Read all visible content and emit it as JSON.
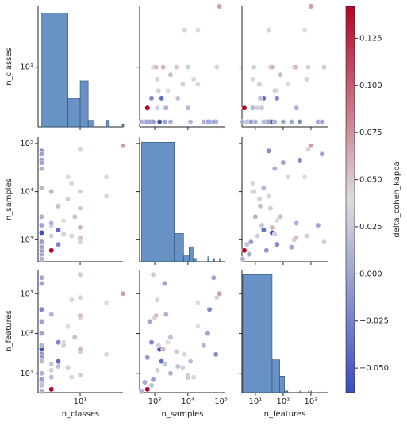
{
  "chart_data": {
    "type": "pairplot",
    "variables": [
      {
        "name": "n_classes",
        "lim": [
          1.72,
          60
        ],
        "ticks": [
          {
            "value": 10,
            "label": "10¹"
          }
        ],
        "values": [
          3,
          2,
          4,
          2,
          2,
          60,
          10,
          10,
          2,
          2,
          2,
          2,
          3,
          5,
          6,
          10,
          10,
          30,
          30,
          7,
          4,
          2,
          2,
          3,
          2,
          2,
          7,
          10,
          8,
          2,
          2,
          3,
          5,
          2,
          10,
          4,
          10,
          2,
          3,
          6
        ],
        "hist": {
          "bins": [
            2,
            6,
            10,
            14,
            18,
            22,
            26,
            30,
            34,
            38,
            42,
            46,
            50,
            54,
            58,
            62
          ],
          "counts": [
            52,
            13,
            21,
            3,
            0,
            0,
            0,
            3,
            0,
            0,
            0,
            0,
            0,
            0,
            1
          ],
          "ylim": [
            0,
            55
          ]
        }
      },
      {
        "name": "n_samples",
        "lim": [
          350,
          135000
        ],
        "ticks": [
          {
            "value": 1000,
            "label": "10³"
          },
          {
            "value": 10000,
            "label": "10⁴"
          },
          {
            "value": 100000,
            "label": "10⁵"
          }
        ],
        "values": [
          600,
          1400,
          1600,
          45000,
          70000,
          90000,
          900,
          75000,
          2000,
          3000,
          500,
          800,
          1200,
          2500,
          20000,
          1000,
          1100,
          20000,
          8000,
          15000,
          5000,
          40000,
          30000,
          10000,
          600,
          900,
          1200,
          4500,
          3000,
          700,
          400,
          2000,
          1300,
          12000,
          1800,
          800,
          10000,
          60000,
          2200,
          7000
        ],
        "hist": {
          "bins": [
            400,
            3900,
            7400,
            10900,
            14400,
            17900,
            40000,
            43500,
            60000,
            63500,
            90000,
            93500
          ],
          "counts": [
            72,
            17,
            4,
            9,
            2,
            0,
            3,
            0,
            2,
            0,
            2
          ],
          "ylim": [
            0,
            75
          ]
        }
      },
      {
        "name": "n_features",
        "lim": [
          3.3,
          4000
        ],
        "ticks": [
          {
            "value": 10,
            "label": "10¹"
          },
          {
            "value": 100,
            "label": "10²"
          },
          {
            "value": 1000,
            "label": "10³"
          }
        ],
        "values": [
          4,
          40,
          20,
          400,
          30,
          1000,
          3000,
          800,
          1800,
          10,
          6,
          5,
          12,
          60,
          150,
          250,
          280,
          600,
          30,
          8,
          15,
          100,
          50,
          8,
          25,
          7,
          700,
          35,
          80,
          200,
          3.5,
          17,
          50,
          20,
          40,
          60,
          9,
          2500,
          300,
          14
        ],
        "hist": {
          "bins": [
            3.5,
            40,
            76,
            112,
            148,
            400,
            436,
            800,
            836,
            1000,
            1036,
            3000,
            3036
          ],
          "counts": [
            72,
            20,
            10,
            1,
            0,
            1,
            0,
            1,
            0,
            1,
            0,
            1
          ],
          "ylim": [
            0,
            75
          ]
        }
      }
    ],
    "hue": {
      "name": "delta_cohen_kappa",
      "lim": [
        -0.063,
        0.142
      ],
      "colors": [
        "#3b4cc0",
        "#dddddd",
        "#b40426"
      ],
      "ticks": [
        {
          "value": -0.05,
          "label": "−0.050"
        },
        {
          "value": -0.025,
          "label": "−0.025"
        },
        {
          "value": 0,
          "label": "0.000"
        },
        {
          "value": 0.025,
          "label": "0.025"
        },
        {
          "value": 0.05,
          "label": "0.050"
        },
        {
          "value": 0.075,
          "label": "0.075"
        },
        {
          "value": 0.1,
          "label": "0.100"
        },
        {
          "value": 0.125,
          "label": "0.125"
        }
      ],
      "values": [
        0.142,
        -0.06,
        -0.04,
        -0.02,
        -0.015,
        0.07,
        0.05,
        0.045,
        0,
        0.01,
        0.005,
        0.02,
        0.03,
        0.04,
        0.04,
        0.05,
        0.055,
        0.04,
        0.035,
        0.035,
        0.02,
        0,
        0.01,
        0.015,
        -0.01,
        -0.005,
        0.045,
        0.05,
        0.02,
        0,
        0.01,
        0.025,
        0.03,
        0.015,
        0.06,
        -0.02,
        0.03,
        0,
        0.01,
        0.03
      ]
    },
    "hist_color": "#4c7fb8"
  }
}
